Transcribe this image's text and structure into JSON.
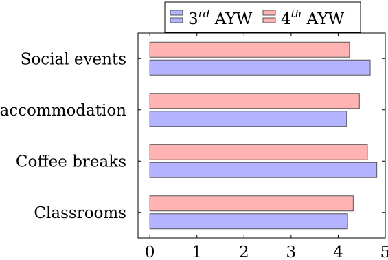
{
  "chart_data": {
    "type": "bar",
    "orientation": "horizontal",
    "title": "",
    "xlabel": "",
    "ylabel": "",
    "xlim": [
      -0.25,
      5
    ],
    "x_ticks": [
      "0",
      "1",
      "2",
      "3",
      "4",
      "5"
    ],
    "categories": [
      "Classrooms",
      "Coffee breaks",
      "accommodation",
      "Social events"
    ],
    "series": [
      {
        "name_base": "3",
        "name_sup": "rd",
        "name_rest": " AYW",
        "color": "#b3b3ff",
        "values": [
          4.2,
          4.82,
          4.18,
          4.68
        ]
      },
      {
        "name_base": "4",
        "name_sup": "th",
        "name_rest": " AYW",
        "color": "#ffb3b3",
        "values": [
          4.32,
          4.62,
          4.45,
          4.24
        ]
      }
    ],
    "grid": false,
    "legend_position": "top-center",
    "bar_stroke": "#555555"
  }
}
